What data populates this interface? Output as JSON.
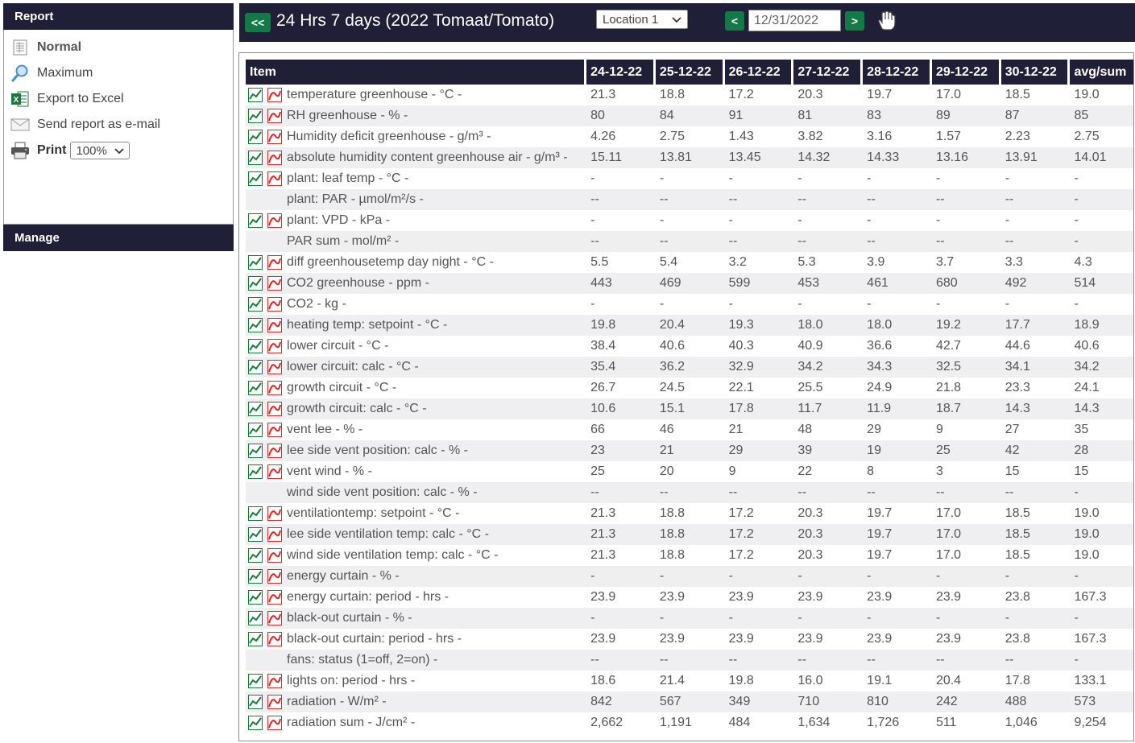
{
  "sidebar": {
    "report_title": "Report",
    "manage_title": "Manage",
    "menu": [
      {
        "label": "Normal",
        "icon": "report-icon"
      },
      {
        "label": "Maximum",
        "icon": "magnifier-icon"
      },
      {
        "label": "Export to Excel",
        "icon": "excel-icon"
      },
      {
        "label": "Send report as e-mail",
        "icon": "envelope-icon"
      }
    ],
    "print_label": "Print",
    "zoom_value": "100%"
  },
  "topbar": {
    "prev_label": "<<",
    "title": "24 Hrs 7 days (2022 Tomaat/Tomato)",
    "location_value": "Location 1",
    "date_prev_label": "<",
    "date_value": "12/31/2022",
    "date_next_label": ">",
    "hand_icon": "hand-icon"
  },
  "colors": {
    "header_bg": "#1f1f38",
    "button_green": "#137a47",
    "row_alt": "#efeff1"
  },
  "table": {
    "headers": [
      "Item",
      "24-12-22",
      "25-12-22",
      "26-12-22",
      "27-12-22",
      "28-12-22",
      "29-12-22",
      "30-12-22",
      "avg/sum"
    ],
    "rows": [
      {
        "item": "temperature greenhouse - °C -",
        "icons": true,
        "values": [
          "21.3",
          "18.8",
          "17.2",
          "20.3",
          "19.7",
          "17.0",
          "18.5",
          "19.0"
        ]
      },
      {
        "item": "RH greenhouse - % -",
        "icons": true,
        "values": [
          "80",
          "84",
          "91",
          "81",
          "83",
          "89",
          "87",
          "85"
        ]
      },
      {
        "item": "Humidity deficit greenhouse - g/m³  -",
        "icons": true,
        "values": [
          "4.26",
          "2.75",
          "1.43",
          "3.82",
          "3.16",
          "1.57",
          "2.23",
          "2.75"
        ]
      },
      {
        "item": "absolute humidity content greenhouse air - g/m³ -",
        "icons": true,
        "values": [
          "15.11",
          "13.81",
          "13.45",
          "14.32",
          "14.33",
          "13.16",
          "13.91",
          "14.01"
        ]
      },
      {
        "item": "plant: leaf temp - °C -",
        "icons": true,
        "values": [
          "-",
          "-",
          "-",
          "-",
          "-",
          "-",
          "-",
          "-"
        ]
      },
      {
        "item": "plant: PAR - µmol/m²/s -",
        "icons": false,
        "values": [
          "--",
          "--",
          "--",
          "--",
          "--",
          "--",
          "--",
          "-"
        ]
      },
      {
        "item": "plant: VPD - kPa -",
        "icons": true,
        "values": [
          "-",
          "-",
          "-",
          "-",
          "-",
          "-",
          "-",
          "-"
        ]
      },
      {
        "item": "PAR sum - mol/m² -",
        "icons": false,
        "values": [
          "--",
          "--",
          "--",
          "--",
          "--",
          "--",
          "--",
          "-"
        ]
      },
      {
        "item": "diff greenhousetemp day night - °C -",
        "icons": true,
        "values": [
          "5.5",
          "5.4",
          "3.2",
          "5.3",
          "3.9",
          "3.7",
          "3.3",
          "4.3"
        ]
      },
      {
        "item": "CO2 greenhouse - ppm -",
        "icons": true,
        "values": [
          "443",
          "469",
          "599",
          "453",
          "461",
          "680",
          "492",
          "514"
        ]
      },
      {
        "item": "CO2 - kg -",
        "icons": true,
        "values": [
          "-",
          "-",
          "-",
          "-",
          "-",
          "-",
          "-",
          "-"
        ]
      },
      {
        "item": "heating temp: setpoint - °C -",
        "icons": true,
        "values": [
          "19.8",
          "20.4",
          "19.3",
          "18.0",
          "18.0",
          "19.2",
          "17.7",
          "18.9"
        ]
      },
      {
        "item": "lower circuit - °C -",
        "icons": true,
        "values": [
          "38.4",
          "40.6",
          "40.3",
          "40.9",
          "36.6",
          "42.7",
          "44.6",
          "40.6"
        ]
      },
      {
        "item": "lower circuit: calc - °C -",
        "icons": true,
        "values": [
          "35.4",
          "36.2",
          "32.9",
          "34.2",
          "34.3",
          "32.5",
          "34.1",
          "34.2"
        ]
      },
      {
        "item": "growth circuit - °C -",
        "icons": true,
        "values": [
          "26.7",
          "24.5",
          "22.1",
          "25.5",
          "24.9",
          "21.8",
          "23.3",
          "24.1"
        ]
      },
      {
        "item": "growth circuit: calc - °C -",
        "icons": true,
        "values": [
          "10.6",
          "15.1",
          "17.8",
          "11.7",
          "11.9",
          "18.7",
          "14.3",
          "14.3"
        ]
      },
      {
        "item": "vent lee - % -",
        "icons": true,
        "values": [
          "66",
          "46",
          "21",
          "48",
          "29",
          "9",
          "27",
          "35"
        ]
      },
      {
        "item": "lee side vent position: calc - % -",
        "icons": true,
        "values": [
          "23",
          "21",
          "29",
          "39",
          "19",
          "25",
          "42",
          "28"
        ]
      },
      {
        "item": "vent wind - % -",
        "icons": true,
        "values": [
          "25",
          "20",
          "9",
          "22",
          "8",
          "3",
          "15",
          "15"
        ]
      },
      {
        "item": "wind side vent position: calc - % -",
        "icons": false,
        "values": [
          "--",
          "--",
          "--",
          "--",
          "--",
          "--",
          "--",
          "-"
        ]
      },
      {
        "item": "ventilationtemp: setpoint - °C -",
        "icons": true,
        "values": [
          "21.3",
          "18.8",
          "17.2",
          "20.3",
          "19.7",
          "17.0",
          "18.5",
          "19.0"
        ]
      },
      {
        "item": "lee side ventilation temp: calc - °C -",
        "icons": true,
        "values": [
          "21.3",
          "18.8",
          "17.2",
          "20.3",
          "19.7",
          "17.0",
          "18.5",
          "19.0"
        ]
      },
      {
        "item": "wind side ventilation temp: calc - °C -",
        "icons": true,
        "values": [
          "21.3",
          "18.8",
          "17.2",
          "20.3",
          "19.7",
          "17.0",
          "18.5",
          "19.0"
        ]
      },
      {
        "item": "energy curtain - % -",
        "icons": true,
        "values": [
          "-",
          "-",
          "-",
          "-",
          "-",
          "-",
          "-",
          "-"
        ]
      },
      {
        "item": "energy curtain: period - hrs -",
        "icons": true,
        "values": [
          "23.9",
          "23.9",
          "23.9",
          "23.9",
          "23.9",
          "23.9",
          "23.8",
          "167.3"
        ]
      },
      {
        "item": "black-out curtain - % -",
        "icons": true,
        "values": [
          "-",
          "-",
          "-",
          "-",
          "-",
          "-",
          "-",
          "-"
        ]
      },
      {
        "item": "black-out curtain: period - hrs -",
        "icons": true,
        "values": [
          "23.9",
          "23.9",
          "23.9",
          "23.9",
          "23.9",
          "23.9",
          "23.8",
          "167.3"
        ]
      },
      {
        "item": "fans: status (1=off, 2=on) -",
        "icons": false,
        "values": [
          "--",
          "--",
          "--",
          "--",
          "--",
          "--",
          "--",
          "-"
        ]
      },
      {
        "item": "lights on: period - hrs -",
        "icons": true,
        "values": [
          "18.6",
          "21.4",
          "19.8",
          "16.0",
          "19.1",
          "20.4",
          "17.8",
          "133.1"
        ]
      },
      {
        "item": "radiation - W/m² -",
        "icons": true,
        "values": [
          "842",
          "567",
          "349",
          "710",
          "810",
          "242",
          "488",
          "573"
        ]
      },
      {
        "item": "radiation sum - J/cm² -",
        "icons": true,
        "values": [
          "2,662",
          "1,191",
          "484",
          "1,634",
          "1,726",
          "511",
          "1,046",
          "9,254"
        ]
      }
    ]
  }
}
